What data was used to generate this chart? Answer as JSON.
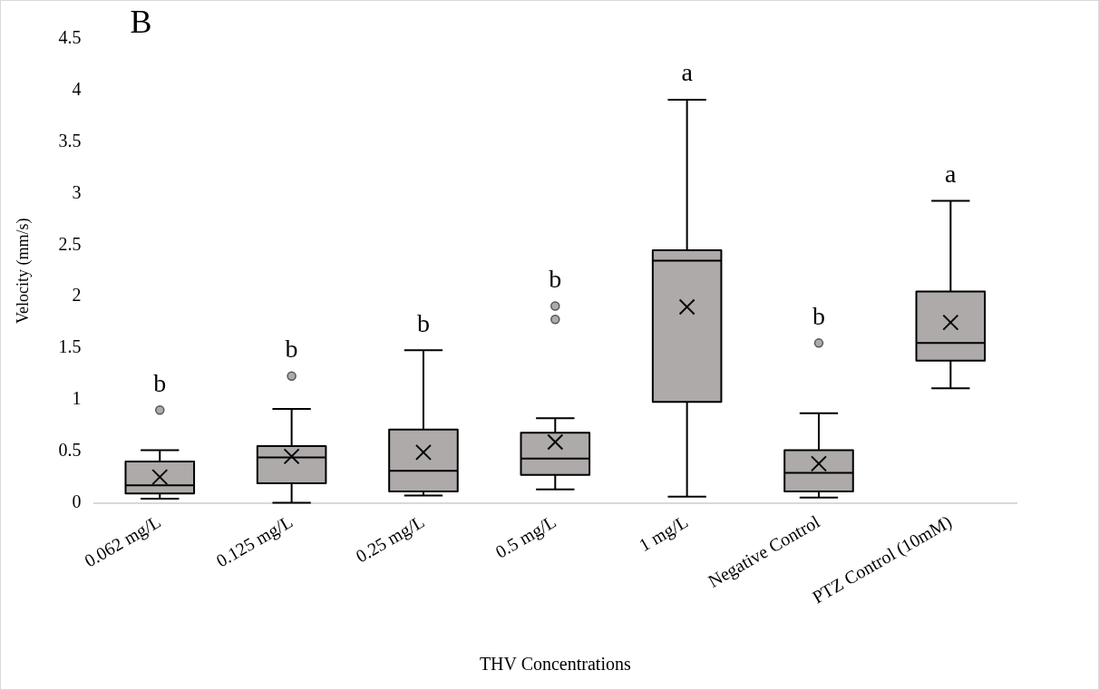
{
  "chart_data": {
    "type": "box",
    "xlabel": "THV Concentrations",
    "ylabel": "Velocity (mm/s)",
    "categories": [
      "0.062 mg/L",
      "0.125 mg/L",
      "0.25 mg/L",
      "0.5 mg/L",
      "1 mg/L",
      "Negative Control",
      "PTZ Control (10mM)"
    ],
    "color": "#aeaaaa",
    "boxes": [
      {
        "low": 0.04,
        "q1": 0.09,
        "median": 0.17,
        "q3": 0.4,
        "high": 0.51,
        "mean": 0.25,
        "outliers": [
          0.9
        ]
      },
      {
        "low": 0.0,
        "q1": 0.19,
        "median": 0.44,
        "q3": 0.55,
        "high": 0.91,
        "mean": 0.45,
        "outliers": [
          1.23
        ]
      },
      {
        "low": 0.07,
        "q1": 0.11,
        "median": 0.31,
        "q3": 0.71,
        "high": 1.48,
        "mean": 0.49
      },
      {
        "low": 0.13,
        "q1": 0.27,
        "median": 0.43,
        "q3": 0.68,
        "high": 0.82,
        "mean": 0.59,
        "outliers": [
          1.78,
          1.91
        ]
      },
      {
        "low": 0.06,
        "q1": 0.98,
        "median": 2.35,
        "q3": 2.45,
        "high": 3.91,
        "mean": 1.9
      },
      {
        "low": 0.05,
        "q1": 0.11,
        "median": 0.29,
        "q3": 0.51,
        "high": 0.87,
        "mean": 0.38,
        "outliers": [
          1.55
        ]
      },
      {
        "low": 1.11,
        "q1": 1.38,
        "median": 1.55,
        "q3": 2.05,
        "high": 2.93,
        "mean": 1.75
      }
    ],
    "ylim": [
      0,
      4.5
    ],
    "yticks": [
      0,
      0.5,
      1,
      1.5,
      2,
      2.5,
      3,
      3.5,
      4,
      4.5
    ],
    "grid": false,
    "legend": false,
    "annotations": [
      "B",
      "b",
      "b",
      "b",
      "b",
      "a",
      "b",
      "a"
    ]
  }
}
